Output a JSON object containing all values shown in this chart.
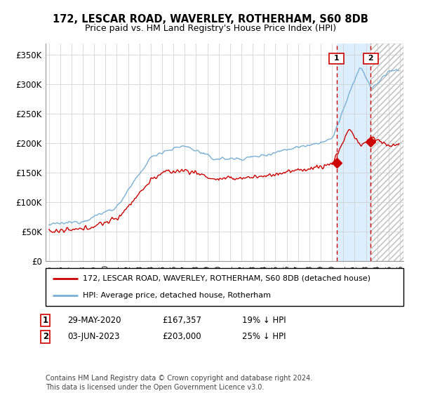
{
  "title": "172, LESCAR ROAD, WAVERLEY, ROTHERHAM, S60 8DB",
  "subtitle": "Price paid vs. HM Land Registry's House Price Index (HPI)",
  "ylabel_ticks": [
    "£0",
    "£50K",
    "£100K",
    "£150K",
    "£200K",
    "£250K",
    "£300K",
    "£350K"
  ],
  "ylabel_values": [
    0,
    50000,
    100000,
    150000,
    200000,
    250000,
    300000,
    350000
  ],
  "ylim": [
    0,
    370000
  ],
  "xlim_start": 1994.7,
  "xlim_end": 2026.3,
  "grid_color": "#cccccc",
  "bg_color": "#ffffff",
  "plot_bg_color": "#ffffff",
  "hpi_color": "#7ab0d4",
  "price_color": "#cc0000",
  "dashed_color": "#cc0000",
  "highlight_color": "#ddeeff",
  "legend_label_price": "172, LESCAR ROAD, WAVERLEY, ROTHERHAM, S60 8DB (detached house)",
  "legend_label_hpi": "HPI: Average price, detached house, Rotherham",
  "annotation1_label": "1",
  "annotation1_date": "29-MAY-2020",
  "annotation1_price": "£167,357",
  "annotation1_hpi": "19% ↓ HPI",
  "annotation2_label": "2",
  "annotation2_date": "03-JUN-2023",
  "annotation2_price": "£203,000",
  "annotation2_hpi": "25% ↓ HPI",
  "footer": "Contains HM Land Registry data © Crown copyright and database right 2024.\nThis data is licensed under the Open Government Licence v3.0.",
  "sale1_x": 2020.41,
  "sale1_y": 167357,
  "sale2_x": 2023.42,
  "sale2_y": 203000,
  "vline1_x": 2020.41,
  "vline2_x": 2023.42
}
